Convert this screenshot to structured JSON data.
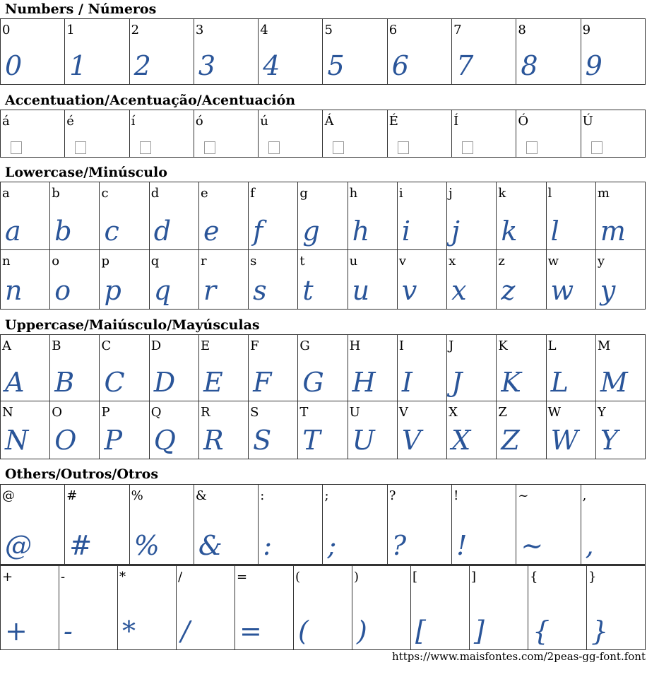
{
  "sections": [
    {
      "title": "Numbers / Números",
      "rows": [
        [
          "0",
          "1",
          "2",
          "3",
          "4",
          "5",
          "6",
          "7",
          "8",
          "9"
        ]
      ],
      "missing": false
    },
    {
      "title": "Accentuation/Acentuação/Acentuación",
      "rows": [
        [
          "á",
          "é",
          "í",
          "ó",
          "ú",
          "Á",
          "É",
          "Í",
          "Ó",
          "Ú"
        ]
      ],
      "missing": true
    },
    {
      "title": "Lowercase/Minúsculo",
      "rows": [
        [
          "a",
          "b",
          "c",
          "d",
          "e",
          "f",
          "g",
          "h",
          "i",
          "j",
          "k",
          "l",
          "m"
        ],
        [
          "n",
          "o",
          "p",
          "q",
          "r",
          "s",
          "t",
          "u",
          "v",
          "x",
          "z",
          "w",
          "y"
        ]
      ],
      "missing": false
    },
    {
      "title": "Uppercase/Maiúsculo/Mayúsculas",
      "rows": [
        [
          "A",
          "B",
          "C",
          "D",
          "E",
          "F",
          "G",
          "H",
          "I",
          "J",
          "K",
          "L",
          "M"
        ],
        [
          "N",
          "O",
          "P",
          "Q",
          "R",
          "S",
          "T",
          "U",
          "V",
          "X",
          "Z",
          "W",
          "Y"
        ]
      ],
      "missing": false
    },
    {
      "title": "Others/Outros/Otros",
      "rows": [
        [
          "@",
          "#",
          "%",
          "&",
          ":",
          ";",
          "?",
          "!",
          "~",
          ","
        ],
        [
          "+",
          "-",
          "*",
          "/",
          "=",
          "(",
          ")",
          "[",
          "]",
          "{",
          "}"
        ]
      ],
      "missing": false
    }
  ],
  "footer": "https://www.maisfontes.com/2peas-gg-font.font",
  "colors": {
    "glyph": "#2a5599",
    "border": "#333333"
  }
}
